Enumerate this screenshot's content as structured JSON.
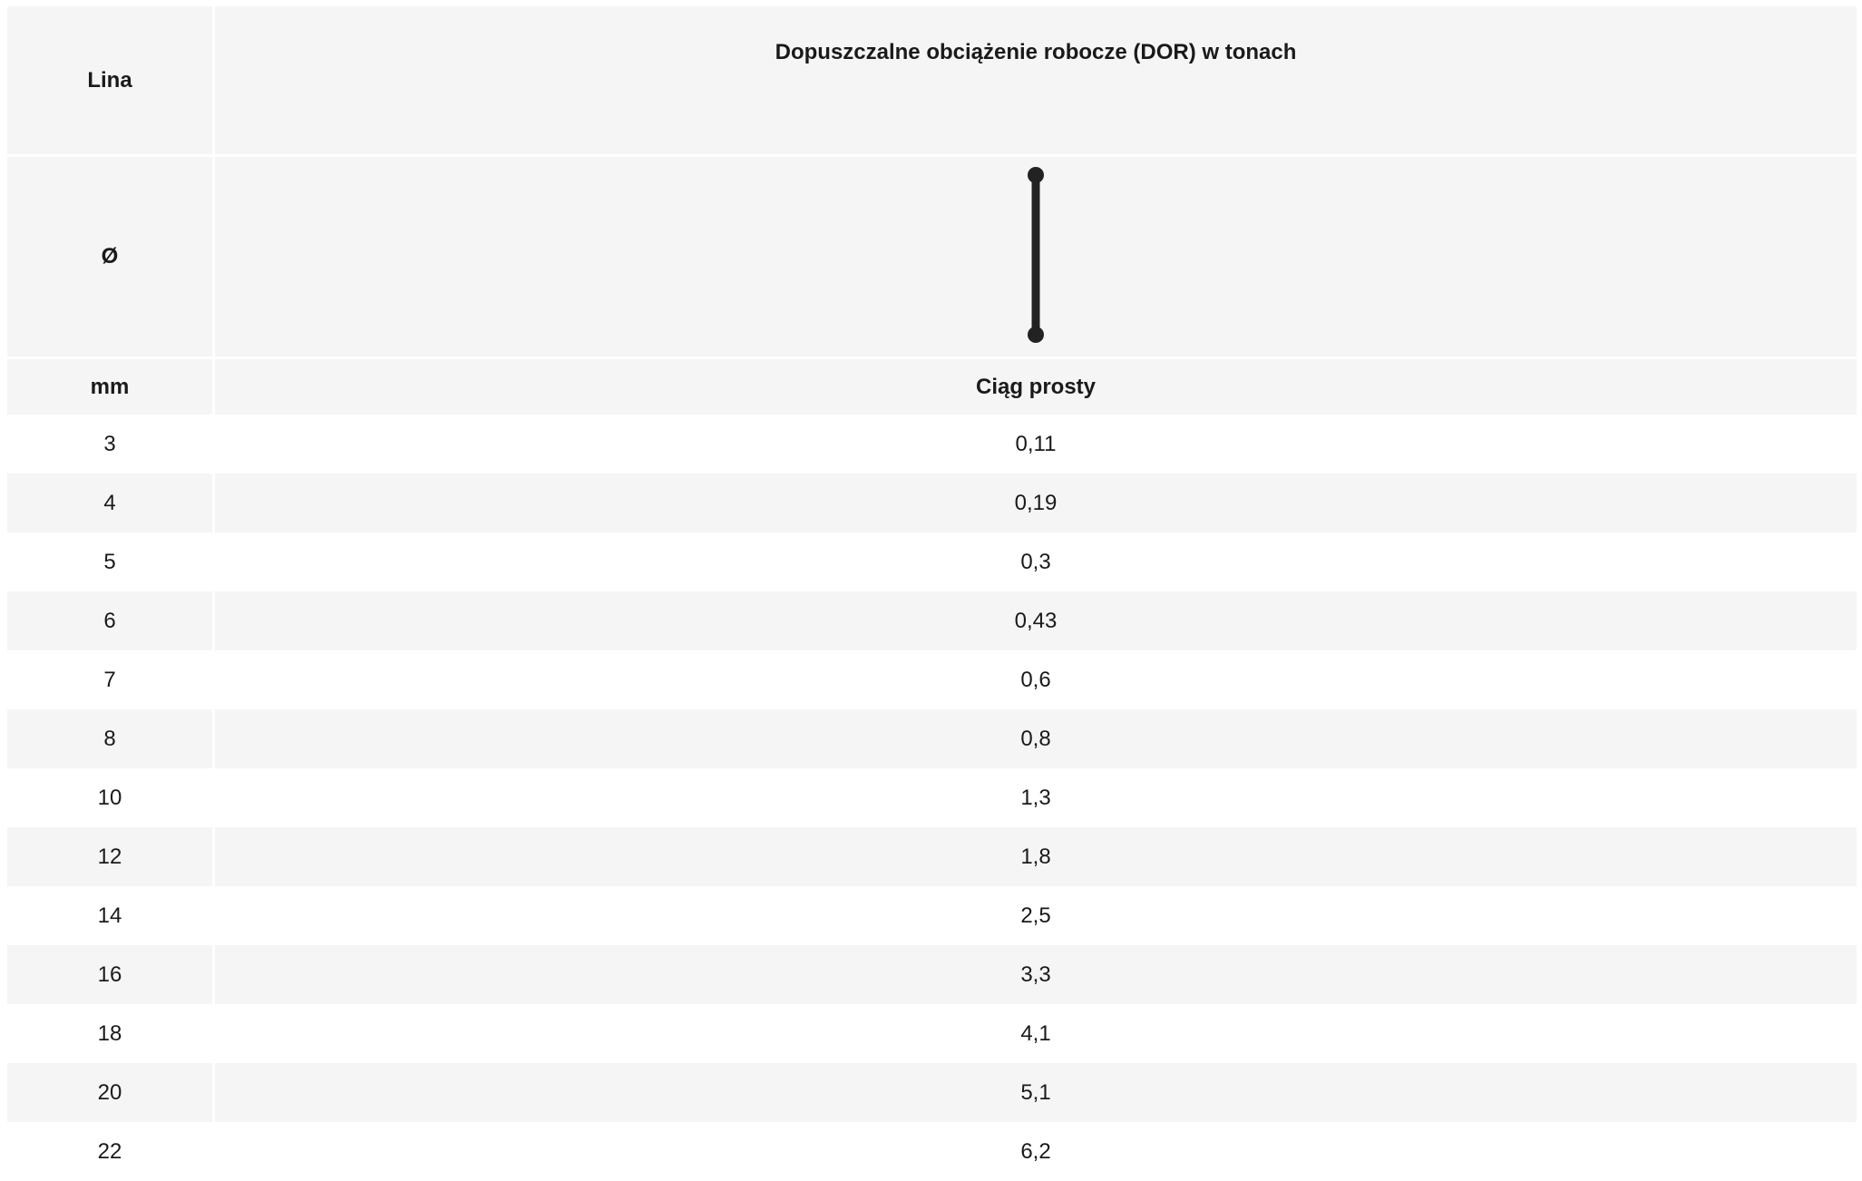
{
  "table": {
    "header": {
      "col1_title": "Lina",
      "col2_title": "Dopuszczalne obciążenie robocze (DOR) w tonach",
      "col1_symbol": "Ø",
      "col2_icon": "straight-lift-sling-icon",
      "col1_unit": "mm",
      "col2_subtitle": "Ciąg prosty"
    },
    "rows": [
      {
        "diameter": "3",
        "wll": "0,11"
      },
      {
        "diameter": "4",
        "wll": "0,19"
      },
      {
        "diameter": "5",
        "wll": "0,3"
      },
      {
        "diameter": "6",
        "wll": "0,43"
      },
      {
        "diameter": "7",
        "wll": "0,6"
      },
      {
        "diameter": "8",
        "wll": "0,8"
      },
      {
        "diameter": "10",
        "wll": "1,3"
      },
      {
        "diameter": "12",
        "wll": "1,8"
      },
      {
        "diameter": "14",
        "wll": "2,5"
      },
      {
        "diameter": "16",
        "wll": "3,3"
      },
      {
        "diameter": "18",
        "wll": "4,1"
      },
      {
        "diameter": "20",
        "wll": "5,1"
      },
      {
        "diameter": "22",
        "wll": "6,2"
      }
    ]
  },
  "colors": {
    "header_bg": "#f5f5f5",
    "stripe_bg": "#f5f5f5",
    "text": "#1a1a1a",
    "icon": "#222222"
  }
}
